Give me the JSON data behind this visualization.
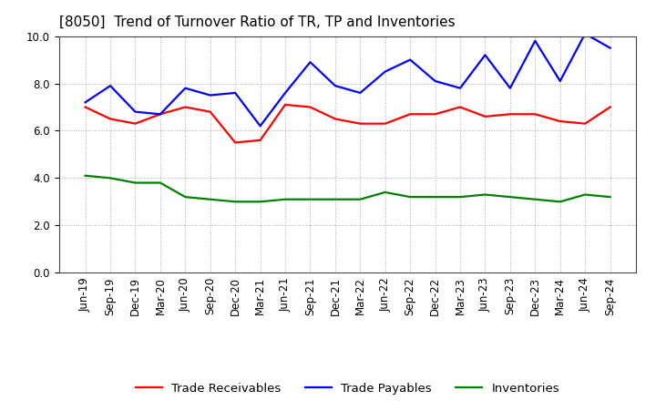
{
  "title": "[8050]  Trend of Turnover Ratio of TR, TP and Inventories",
  "x_labels": [
    "Jun-19",
    "Sep-19",
    "Dec-19",
    "Mar-20",
    "Jun-20",
    "Sep-20",
    "Dec-20",
    "Mar-21",
    "Jun-21",
    "Sep-21",
    "Dec-21",
    "Mar-22",
    "Jun-22",
    "Sep-22",
    "Dec-22",
    "Mar-23",
    "Jun-23",
    "Sep-23",
    "Dec-23",
    "Mar-24",
    "Jun-24",
    "Sep-24"
  ],
  "trade_receivables": [
    7.0,
    6.5,
    6.3,
    6.7,
    7.0,
    6.8,
    5.5,
    5.6,
    7.1,
    7.0,
    6.5,
    6.3,
    6.3,
    6.7,
    6.7,
    7.0,
    6.6,
    6.7,
    6.7,
    6.4,
    6.3,
    7.0
  ],
  "trade_payables": [
    7.2,
    7.9,
    6.8,
    6.7,
    7.8,
    7.5,
    7.6,
    6.2,
    7.6,
    8.9,
    7.9,
    7.6,
    8.5,
    9.0,
    8.1,
    7.8,
    9.2,
    7.8,
    9.8,
    8.1,
    10.1,
    9.5
  ],
  "inventories": [
    4.1,
    4.0,
    3.8,
    3.8,
    3.2,
    3.1,
    3.0,
    3.0,
    3.1,
    3.1,
    3.1,
    3.1,
    3.4,
    3.2,
    3.2,
    3.2,
    3.3,
    3.2,
    3.1,
    3.0,
    3.3,
    3.2
  ],
  "tr_color": "#FF0000",
  "tp_color": "#0000FF",
  "inv_color": "#008000",
  "ylim": [
    0.0,
    10.0
  ],
  "yticks": [
    0.0,
    2.0,
    4.0,
    6.0,
    8.0,
    10.0
  ],
  "legend_tr": "Trade Receivables",
  "legend_tp": "Trade Payables",
  "legend_inv": "Inventories",
  "title_fontsize": 11,
  "axis_fontsize": 8.5,
  "legend_fontsize": 9.5,
  "line_width": 1.6,
  "background_color": "#FFFFFF",
  "grid_color": "#AAAAAA"
}
